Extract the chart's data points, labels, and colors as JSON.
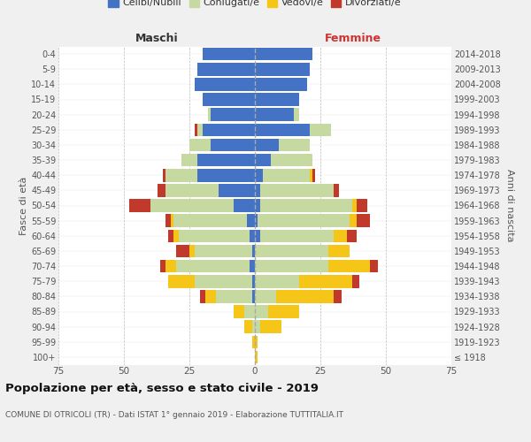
{
  "age_groups": [
    "100+",
    "95-99",
    "90-94",
    "85-89",
    "80-84",
    "75-79",
    "70-74",
    "65-69",
    "60-64",
    "55-59",
    "50-54",
    "45-49",
    "40-44",
    "35-39",
    "30-34",
    "25-29",
    "20-24",
    "15-19",
    "10-14",
    "5-9",
    "0-4"
  ],
  "birth_years": [
    "≤ 1918",
    "1919-1923",
    "1924-1928",
    "1929-1933",
    "1934-1938",
    "1939-1943",
    "1944-1948",
    "1949-1953",
    "1954-1958",
    "1959-1963",
    "1964-1968",
    "1969-1973",
    "1974-1978",
    "1979-1983",
    "1984-1988",
    "1989-1993",
    "1994-1998",
    "1999-2003",
    "2004-2008",
    "2009-2013",
    "2014-2018"
  ],
  "males": {
    "celibi": [
      0,
      0,
      0,
      0,
      1,
      1,
      2,
      1,
      2,
      3,
      8,
      14,
      22,
      22,
      17,
      20,
      17,
      20,
      23,
      22,
      20
    ],
    "coniugati": [
      0,
      0,
      1,
      4,
      14,
      22,
      28,
      22,
      27,
      28,
      32,
      20,
      12,
      6,
      8,
      2,
      1,
      0,
      0,
      0,
      0
    ],
    "vedovi": [
      0,
      1,
      3,
      4,
      4,
      10,
      4,
      2,
      2,
      1,
      0,
      0,
      0,
      0,
      0,
      0,
      0,
      0,
      0,
      0,
      0
    ],
    "divorziati": [
      0,
      0,
      0,
      0,
      2,
      0,
      2,
      5,
      2,
      2,
      8,
      3,
      1,
      0,
      0,
      1,
      0,
      0,
      0,
      0,
      0
    ]
  },
  "females": {
    "nubili": [
      0,
      0,
      0,
      0,
      0,
      0,
      0,
      0,
      2,
      1,
      2,
      2,
      3,
      6,
      9,
      21,
      15,
      17,
      20,
      21,
      22
    ],
    "coniugate": [
      0,
      0,
      2,
      5,
      8,
      17,
      28,
      28,
      28,
      35,
      35,
      28,
      18,
      16,
      12,
      8,
      2,
      0,
      0,
      0,
      0
    ],
    "vedove": [
      1,
      1,
      8,
      12,
      22,
      20,
      16,
      8,
      5,
      3,
      2,
      0,
      1,
      0,
      0,
      0,
      0,
      0,
      0,
      0,
      0
    ],
    "divorziate": [
      0,
      0,
      0,
      0,
      3,
      3,
      3,
      0,
      4,
      5,
      4,
      2,
      1,
      0,
      0,
      0,
      0,
      0,
      0,
      0,
      0
    ]
  },
  "colors": {
    "celibi": "#4472c4",
    "coniugati": "#c5d9a0",
    "vedovi": "#f5c518",
    "divorziati": "#c0392b"
  },
  "xlim": 75,
  "title": "Popolazione per età, sesso e stato civile - 2019",
  "subtitle": "COMUNE DI OTRICOLI (TR) - Dati ISTAT 1° gennaio 2019 - Elaborazione TUTTITALIA.IT",
  "ylabel_left": "Fasce di età",
  "ylabel_right": "Anni di nascita",
  "xlabel_left": "Maschi",
  "xlabel_right": "Femmine",
  "bg_color": "#f0f0f0",
  "plot_bg": "#ffffff"
}
